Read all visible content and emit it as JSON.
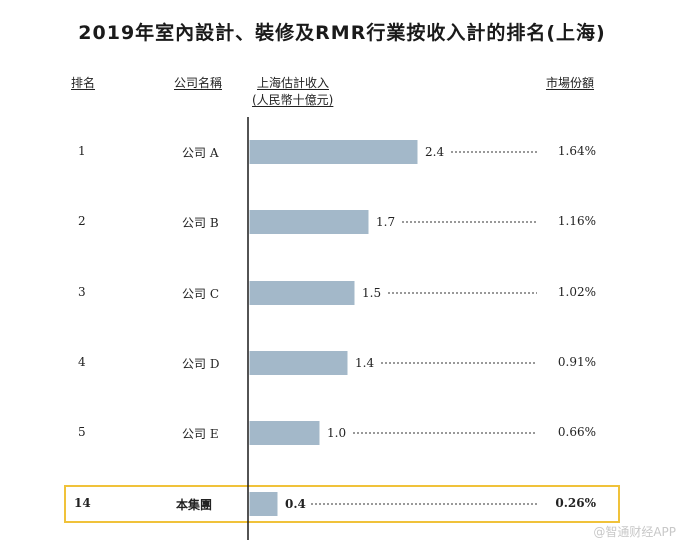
{
  "chart_data": {
    "type": "bar",
    "orientation": "horizontal",
    "title": "2019年室內設計、裝修及RMR行業按收入計的排名(上海)",
    "columns": {
      "rank": "排名",
      "company": "公司名稱",
      "revenue": "上海估計收入",
      "revenue_unit": "(人民幣十億元)",
      "share": "市場份額"
    },
    "rows": [
      {
        "rank": "1",
        "company_cn": "公司",
        "company_letter": "A",
        "value": 2.4,
        "value_label": "2.4",
        "share": "1.64%",
        "highlight": false
      },
      {
        "rank": "2",
        "company_cn": "公司",
        "company_letter": "B",
        "value": 1.7,
        "value_label": "1.7",
        "share": "1.16%",
        "highlight": false
      },
      {
        "rank": "3",
        "company_cn": "公司",
        "company_letter": "C",
        "value": 1.5,
        "value_label": "1.5",
        "share": "1.02%",
        "highlight": false
      },
      {
        "rank": "4",
        "company_cn": "公司",
        "company_letter": "D",
        "value": 1.4,
        "value_label": "1.4",
        "share": "0.91%",
        "highlight": false
      },
      {
        "rank": "5",
        "company_cn": "公司",
        "company_letter": "E",
        "value": 1.0,
        "value_label": "1.0",
        "share": "0.66%",
        "highlight": false
      },
      {
        "rank": "14",
        "company_cn": "本集團",
        "company_letter": "",
        "value": 0.4,
        "value_label": "0.4",
        "share": "0.26%",
        "highlight": true
      }
    ],
    "colors": {
      "bar": "#a3b8c9",
      "highlight_border": "#f0c23a",
      "axis": "#1a1a1a"
    }
  },
  "watermark": "@智通财经APP"
}
